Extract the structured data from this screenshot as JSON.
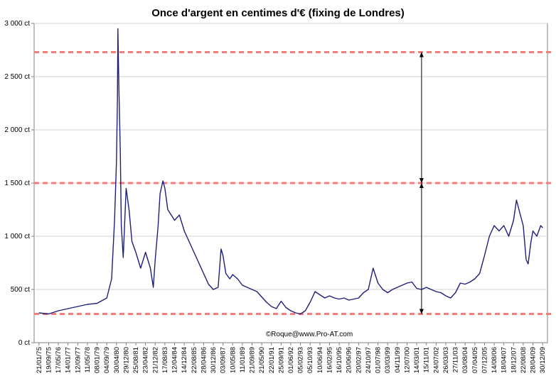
{
  "chart_data": {
    "type": "line",
    "title": "Once d'argent en centimes d'€ (fixing de Londres)",
    "xlabel": "",
    "ylabel": "",
    "ylim": [
      0,
      3000
    ],
    "y_ticks": [
      0,
      500,
      1000,
      1500,
      2000,
      2500,
      3000
    ],
    "y_tick_labels": [
      "0 ct",
      "500 ct",
      "1 000 ct",
      "1 500 ct",
      "2 000 ct",
      "2 500 ct",
      "3 000 ct"
    ],
    "x_tick_labels": [
      "21/01/75",
      "19/09/75",
      "17/05/76",
      "14/01/77",
      "12/09/77",
      "11/05/78",
      "08/01/79",
      "04/09/79",
      "30/04/80",
      "29/12/80",
      "25/08/81",
      "23/04/82",
      "21/12/82",
      "17/08/83",
      "12/04/84",
      "14/12/84",
      "22/08/85",
      "28/04/86",
      "30/12/86",
      "03/09/87",
      "10/05/88",
      "11/01/89",
      "21/09/89",
      "21/05/90",
      "22/01/91",
      "25/09/91",
      "01/06/92",
      "05/02/93",
      "05/10/93",
      "10/06/94",
      "16/02/95",
      "16/10/95",
      "20/06/96",
      "20/02/97",
      "24/10/97",
      "01/07/98",
      "03/03/99",
      "04/11/99",
      "12/07/00",
      "14/03/01",
      "15/11/01",
      "24/07/02",
      "26/03/03",
      "27/11/03",
      "03/08/04",
      "07/04/05",
      "07/12/05",
      "14/08/06",
      "18/04/07",
      "18/12/07",
      "22/08/08",
      "28/04/09",
      "30/12/09"
    ],
    "grid": true,
    "legend": "none",
    "series": [
      {
        "color": "#1f1f7a",
        "points": [
          [
            0,
            280
          ],
          [
            1,
            270
          ],
          [
            2,
            300
          ],
          [
            3,
            320
          ],
          [
            4,
            340
          ],
          [
            5,
            360
          ],
          [
            6,
            370
          ],
          [
            7,
            420
          ],
          [
            7.5,
            600
          ],
          [
            7.8,
            1150
          ],
          [
            8.0,
            1700
          ],
          [
            8.1,
            2300
          ],
          [
            8.15,
            2950
          ],
          [
            8.25,
            2400
          ],
          [
            8.4,
            1800
          ],
          [
            8.5,
            1100
          ],
          [
            8.7,
            800
          ],
          [
            9,
            1450
          ],
          [
            9.3,
            1250
          ],
          [
            9.6,
            950
          ],
          [
            10,
            850
          ],
          [
            10.5,
            700
          ],
          [
            11,
            850
          ],
          [
            11.5,
            700
          ],
          [
            11.8,
            520
          ],
          [
            12.0,
            780
          ],
          [
            12.3,
            1100
          ],
          [
            12.5,
            1400
          ],
          [
            12.8,
            1520
          ],
          [
            13,
            1450
          ],
          [
            13.3,
            1250
          ],
          [
            14,
            1150
          ],
          [
            14.5,
            1200
          ],
          [
            15,
            1050
          ],
          [
            15.5,
            950
          ],
          [
            16,
            850
          ],
          [
            16.5,
            750
          ],
          [
            17,
            650
          ],
          [
            17.5,
            550
          ],
          [
            18,
            500
          ],
          [
            18.5,
            520
          ],
          [
            18.8,
            880
          ],
          [
            19,
            820
          ],
          [
            19.3,
            650
          ],
          [
            19.7,
            600
          ],
          [
            20,
            640
          ],
          [
            20.5,
            600
          ],
          [
            21,
            540
          ],
          [
            21.5,
            520
          ],
          [
            22,
            500
          ],
          [
            22.5,
            480
          ],
          [
            23,
            430
          ],
          [
            23.5,
            380
          ],
          [
            24,
            340
          ],
          [
            24.5,
            320
          ],
          [
            25,
            390
          ],
          [
            25.5,
            330
          ],
          [
            26,
            300
          ],
          [
            26.5,
            280
          ],
          [
            27,
            270
          ],
          [
            27.5,
            300
          ],
          [
            28,
            380
          ],
          [
            28.5,
            480
          ],
          [
            29,
            450
          ],
          [
            29.5,
            420
          ],
          [
            30,
            440
          ],
          [
            30.5,
            420
          ],
          [
            31,
            410
          ],
          [
            31.5,
            420
          ],
          [
            32,
            400
          ],
          [
            32.5,
            410
          ],
          [
            33,
            420
          ],
          [
            33.5,
            470
          ],
          [
            34,
            500
          ],
          [
            34.5,
            700
          ],
          [
            35,
            560
          ],
          [
            35.5,
            500
          ],
          [
            36,
            470
          ],
          [
            36.5,
            500
          ],
          [
            37,
            520
          ],
          [
            37.5,
            540
          ],
          [
            38,
            560
          ],
          [
            38.5,
            570
          ],
          [
            39,
            510
          ],
          [
            39.5,
            500
          ],
          [
            40,
            520
          ],
          [
            40.5,
            500
          ],
          [
            41,
            480
          ],
          [
            41.5,
            470
          ],
          [
            42,
            440
          ],
          [
            42.5,
            420
          ],
          [
            43,
            470
          ],
          [
            43.5,
            560
          ],
          [
            44,
            550
          ],
          [
            44.5,
            570
          ],
          [
            45,
            600
          ],
          [
            45.5,
            650
          ],
          [
            46,
            820
          ],
          [
            46.5,
            1000
          ],
          [
            47,
            1100
          ],
          [
            47.5,
            1050
          ],
          [
            48,
            1100
          ],
          [
            48.5,
            1000
          ],
          [
            49,
            1150
          ],
          [
            49.3,
            1340
          ],
          [
            49.7,
            1200
          ],
          [
            50,
            1100
          ],
          [
            50.3,
            780
          ],
          [
            50.5,
            740
          ],
          [
            50.8,
            950
          ],
          [
            51,
            1050
          ],
          [
            51.4,
            1000
          ],
          [
            51.8,
            1100
          ],
          [
            52,
            1080
          ]
        ]
      }
    ],
    "reference_lines": [
      {
        "y": 270,
        "color": "#f08080"
      },
      {
        "y": 1500,
        "color": "#f08080"
      },
      {
        "y": 2730,
        "color": "#f08080"
      }
    ],
    "arrows": [
      {
        "x_index": 39.5,
        "y_from": 270,
        "y_to": 1500,
        "color": "#000000"
      },
      {
        "x_index": 39.5,
        "y_from": 1500,
        "y_to": 2730,
        "color": "#000000"
      }
    ],
    "watermark": "©Roque@www.Pro-AT.com"
  }
}
